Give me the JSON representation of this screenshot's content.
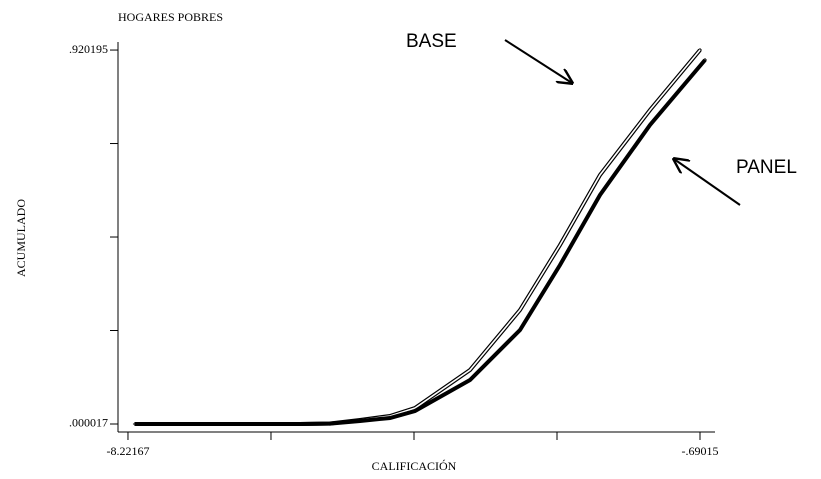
{
  "chart_data": {
    "type": "line",
    "title": "HOGARES POBRES",
    "xlabel": "CALIFICACIÓN",
    "ylabel": "ACUMULADO",
    "annotations": [
      "BASE",
      "PANEL"
    ],
    "xlim": [
      -8.353,
      -0.4927
    ],
    "ylim": [
      -0.0197,
      0.94
    ],
    "xticks": [
      -8.22167,
      {
        "value": -0.69015,
        "label": "-.69015"
      }
    ],
    "xminor_ticks": [
      -6.33879,
      -4.45591,
      -2.57303
    ],
    "yticks": [
      {
        "value": 1.7e-05,
        "label": ".000017"
      },
      {
        "value": 0.920195,
        "label": ".920195"
      }
    ],
    "yminor_ticks": [
      0.230062,
      0.460106,
      0.690151
    ],
    "series": [
      {
        "name": "BASE",
        "color": "#000000",
        "style": "outline",
        "x": [
          -8.1295,
          -7.8003,
          -7.4712,
          -7.2078,
          -7.0761,
          -6.8787,
          -6.747,
          -6.6153,
          -6.4837,
          -6.352,
          -6.2203,
          -6.0886,
          -5.957,
          -5.562,
          -5.167,
          -4.7719,
          -4.4428,
          -3.7186,
          -3.0602,
          -2.5336,
          -2.0069,
          -1.3485,
          -0.69015
        ],
        "values": [
          2e-05,
          2e-05,
          2e-05,
          2e-05,
          2e-05,
          2e-05,
          2e-05,
          2e-05,
          2e-05,
          2e-05,
          2e-05,
          2e-05,
          2e-05,
          0.0012,
          0.0098,
          0.0197,
          0.0394,
          0.1329,
          0.2805,
          0.4404,
          0.6126,
          0.7726,
          0.920195
        ]
      },
      {
        "name": "PANEL",
        "color": "#000000",
        "style": "thick",
        "x": [
          -8.1295,
          -7.8003,
          -7.4712,
          -7.2078,
          -7.0761,
          -6.8787,
          -6.747,
          -6.6153,
          -6.4837,
          -6.352,
          -6.2203,
          -6.0886,
          -5.957,
          -5.562,
          -5.167,
          -4.7719,
          -4.4428,
          -3.7186,
          -3.0602,
          -2.5336,
          -2.0069,
          -1.3485,
          -0.6243
        ],
        "values": [
          2e-05,
          2e-05,
          2e-05,
          2e-05,
          2e-05,
          2e-05,
          2e-05,
          2e-05,
          2e-05,
          2e-05,
          2e-05,
          2e-05,
          2e-05,
          0.001,
          0.0074,
          0.0148,
          0.032,
          0.1083,
          0.2313,
          0.3912,
          0.5634,
          0.7357,
          0.8956
        ]
      }
    ]
  }
}
